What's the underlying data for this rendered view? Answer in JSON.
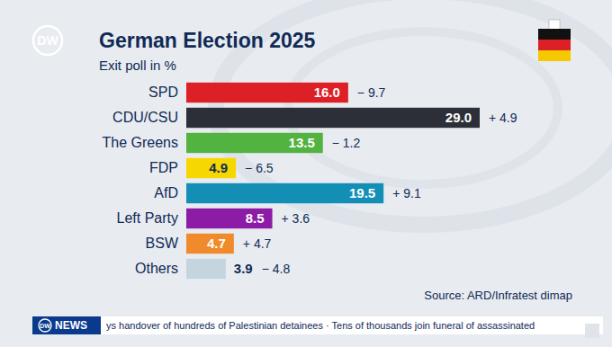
{
  "chart_data": {
    "type": "bar",
    "orientation": "horizontal",
    "title": "German Election 2025",
    "subtitle": "Exit poll in %",
    "categories": [
      "SPD",
      "CDU/CSU",
      "The Greens",
      "FDP",
      "AfD",
      "Left Party",
      "BSW",
      "Others"
    ],
    "values": [
      16,
      29,
      13.5,
      4.9,
      19.5,
      8.5,
      4.7,
      3.9
    ],
    "value_labels": [
      "16.0",
      "29.0",
      "13.5",
      "4.9",
      "19.5",
      "8.5",
      "4.7",
      "3.9"
    ],
    "changes": [
      -9.7,
      4.9,
      -1.2,
      -6.5,
      9.1,
      3.6,
      4.7,
      -4.8
    ],
    "change_labels": [
      "− 9.7",
      "+ 4.9",
      "− 1.2",
      "− 6.5",
      "+ 9.1",
      "+ 3.6",
      "+ 4.7",
      "− 4.8"
    ],
    "colors": [
      "#dd1f26",
      "#2c2f37",
      "#52b340",
      "#f6d800",
      "#138fb6",
      "#8c1ba6",
      "#f08a2a",
      "#c4d5df"
    ],
    "data_labels": true,
    "tick_labels": "y",
    "grid": false,
    "source": "Source: ARD/Infratest dimap"
  },
  "page": {
    "logo": "DW",
    "ticker_brand": "NEWS",
    "ticker_text": "ys handover of hundreds of Palestinian detainees · Tens of thousands join funeral of assassinated"
  }
}
